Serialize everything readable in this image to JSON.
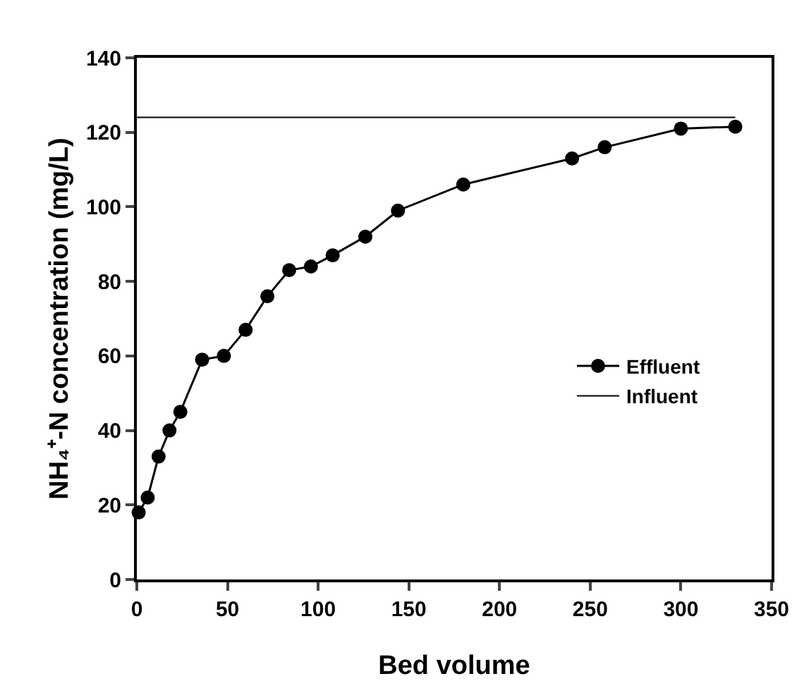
{
  "chart_data": {
    "type": "line",
    "xlabel": "Bed volume",
    "ylabel": "NH₄⁺-N concentration (mg/L)",
    "xlim": [
      0,
      350
    ],
    "xticks": [
      0,
      50,
      100,
      150,
      200,
      250,
      300,
      350
    ],
    "ylim": [
      0,
      140
    ],
    "yticks": [
      0,
      20,
      40,
      60,
      80,
      100,
      120,
      140
    ],
    "grid": false,
    "legend": "right",
    "series": [
      {
        "name": "Effluent",
        "color": "#000000",
        "marker": "circle",
        "x": [
          1,
          6,
          12,
          18,
          24,
          36,
          48,
          60,
          72,
          84,
          96,
          108,
          126,
          144,
          180,
          240,
          258,
          300,
          330
        ],
        "values": [
          18,
          22,
          33,
          40,
          45,
          59,
          60,
          67,
          76,
          83,
          84,
          87,
          92,
          99,
          106,
          113,
          116,
          121,
          121.5
        ]
      },
      {
        "name": "Influent",
        "color": "#000000",
        "marker": "none",
        "x": [
          0,
          330
        ],
        "values": [
          124,
          124
        ]
      }
    ]
  }
}
